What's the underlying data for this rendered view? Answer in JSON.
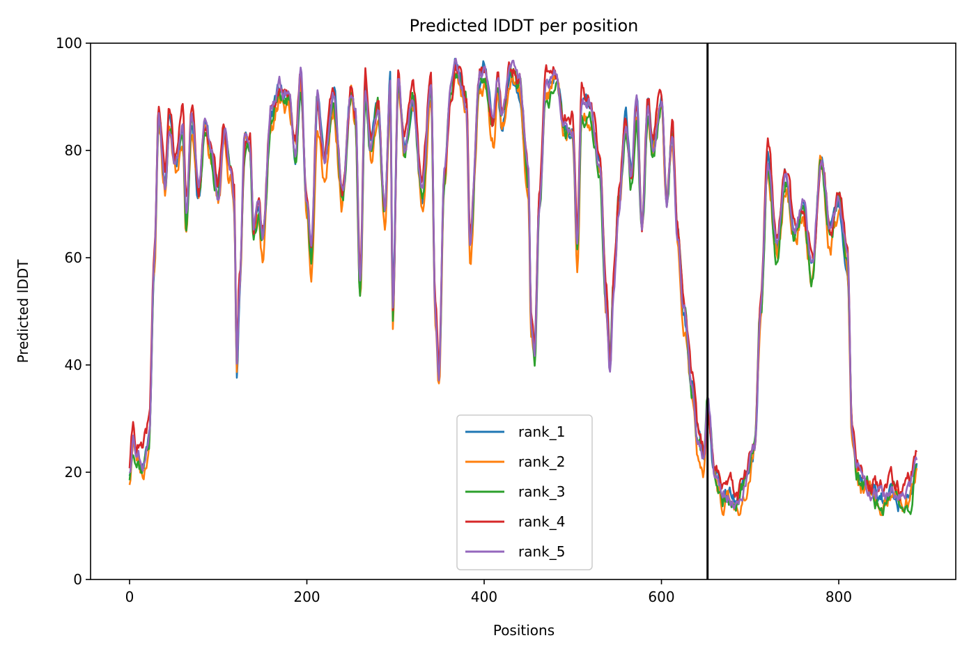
{
  "chart_data": {
    "type": "line",
    "title": "Predicted lDDT per position",
    "xlabel": "Positions",
    "ylabel": "Predicted lDDT",
    "xlim": [
      -44,
      932
    ],
    "ylim": [
      0,
      100
    ],
    "xticks": [
      0,
      200,
      400,
      600,
      800
    ],
    "yticks": [
      0,
      20,
      40,
      60,
      80,
      100
    ],
    "grid": false,
    "legend_position": "lower-center",
    "vline_x": 652,
    "vline_color": "#000000",
    "series_profile": {
      "x": [
        0,
        4,
        8,
        15,
        22,
        28,
        33,
        40,
        45,
        52,
        60,
        64,
        70,
        78,
        85,
        92,
        100,
        107,
        113,
        118,
        121,
        124,
        130,
        136,
        140,
        145,
        150,
        160,
        170,
        180,
        187,
        193,
        200,
        205,
        212,
        220,
        230,
        240,
        250,
        255,
        260,
        266,
        272,
        280,
        288,
        294,
        297,
        303,
        310,
        320,
        330,
        340,
        345,
        349,
        355,
        362,
        368,
        380,
        384,
        395,
        400,
        410,
        415,
        420,
        430,
        440,
        450,
        453,
        457,
        462,
        470,
        480,
        490,
        500,
        505,
        510,
        520,
        530,
        538,
        542,
        546,
        552,
        560,
        566,
        572,
        578,
        585,
        590,
        600,
        606,
        612,
        618,
        625,
        635,
        642,
        648,
        652,
        660,
        670,
        685,
        695,
        705,
        712,
        720,
        730,
        740,
        750,
        760,
        770,
        780,
        790,
        800,
        810,
        815,
        820,
        825,
        830,
        840,
        850,
        860,
        870,
        880,
        888
      ],
      "y": [
        20,
        27,
        24,
        22,
        27,
        60,
        87,
        74,
        86,
        78,
        85,
        68,
        86,
        72,
        85,
        80,
        72,
        84,
        77,
        70,
        40,
        55,
        82,
        80,
        65,
        70,
        63,
        87,
        91,
        90,
        80,
        93,
        70,
        60,
        89,
        78,
        90,
        72,
        91,
        86,
        54,
        92,
        80,
        88,
        68,
        92,
        50,
        93,
        80,
        90,
        72,
        93,
        50,
        38,
        75,
        90,
        95,
        88,
        62,
        93,
        95,
        84,
        93,
        86,
        95,
        92,
        75,
        48,
        42,
        70,
        92,
        93,
        85,
        84,
        62,
        89,
        88,
        78,
        52,
        40,
        55,
        70,
        85,
        75,
        88,
        65,
        88,
        80,
        90,
        70,
        83,
        65,
        50,
        35,
        25,
        22,
        32,
        20,
        16,
        14,
        18,
        24,
        50,
        78,
        62,
        75,
        65,
        70,
        58,
        78,
        65,
        70,
        60,
        28,
        20,
        18,
        17,
        16,
        15,
        16,
        15,
        16,
        22
      ]
    },
    "series": [
      {
        "name": "rank_1",
        "color": "#1f77b4",
        "seed": 11,
        "jitter": 2.6,
        "lift": 0.0
      },
      {
        "name": "rank_2",
        "color": "#ff7f0e",
        "seed": 23,
        "jitter": 3.0,
        "lift": -1.6
      },
      {
        "name": "rank_3",
        "color": "#2ca02c",
        "seed": 37,
        "jitter": 2.8,
        "lift": -0.8
      },
      {
        "name": "rank_4",
        "color": "#d62728",
        "seed": 41,
        "jitter": 2.7,
        "lift": 1.4
      },
      {
        "name": "rank_5",
        "color": "#9467bd",
        "seed": 53,
        "jitter": 2.2,
        "lift": 0.4
      }
    ]
  }
}
